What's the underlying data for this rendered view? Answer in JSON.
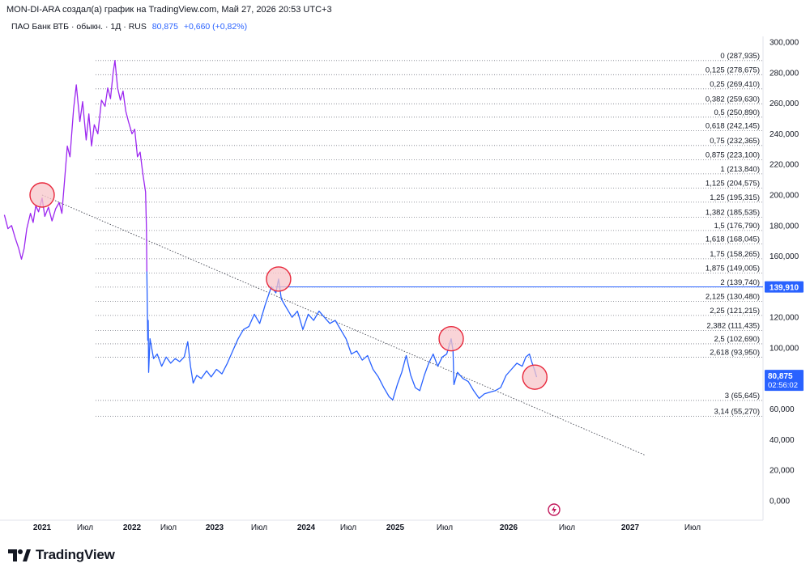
{
  "header": {
    "text": "MON-DI-ARA создал(а) график на TradingView.com, Май 27, 2026 20:53 UTC+3"
  },
  "legend": {
    "title": "ПАО Банк ВТБ · обыкн. · 1Д · RUS",
    "last": "80,875",
    "change": "+0,660 (+0,82%)"
  },
  "footer": {
    "brand": "TradingView"
  },
  "colors": {
    "purple": "#9c27f0",
    "blue": "#2962ff",
    "axis": "#131722",
    "grid_dotted": "#787b86",
    "circle_fill": "#f7c5c9",
    "circle_stroke": "#e8283c"
  },
  "chart_data": {
    "type": "line",
    "title": "ПАО Банк ВТБ · обыкн. · 1Д · RUS",
    "xlabel": "",
    "ylabel": "",
    "ylim": [
      0,
      300000
    ],
    "x_ticks": [
      "2021",
      "Июл",
      "2022",
      "Июл",
      "2023",
      "Июл",
      "2024",
      "Июл",
      "2025",
      "Июл",
      "2026",
      "Июл",
      "2027",
      "Июл"
    ],
    "y_ticks": [
      "0,000",
      "20,000",
      "40,000",
      "60,000",
      "80,000",
      "100,000",
      "120,000",
      "140,000",
      "160,000",
      "180,000",
      "200,000",
      "220,000",
      "240,000",
      "260,000",
      "280,000",
      "300,000"
    ],
    "y_tick_values": [
      0,
      20000,
      40000,
      60000,
      80000,
      100000,
      120000,
      140000,
      160000,
      180000,
      200000,
      220000,
      240000,
      260000,
      280000,
      300000
    ],
    "last_price": {
      "value": "80,875",
      "countdown": "02:56:02"
    },
    "horizontal_line": {
      "label": "139,910",
      "value": 139910
    },
    "fibonacci": [
      {
        "label": "0 (287,935)",
        "value": 287935
      },
      {
        "label": "0,125 (278,675)",
        "value": 278675
      },
      {
        "label": "0,25 (269,410)",
        "value": 269410
      },
      {
        "label": "0,382 (259,630)",
        "value": 259630
      },
      {
        "label": "0,5 (250,890)",
        "value": 250890
      },
      {
        "label": "0,618 (242,145)",
        "value": 242145
      },
      {
        "label": "0,75 (232,365)",
        "value": 232365
      },
      {
        "label": "0,875 (223,100)",
        "value": 223100
      },
      {
        "label": "1 (213,840)",
        "value": 213840
      },
      {
        "label": "1,125 (204,575)",
        "value": 204575
      },
      {
        "label": "1,25 (195,315)",
        "value": 195315
      },
      {
        "label": "1,382 (185,535)",
        "value": 185535
      },
      {
        "label": "1,5 (176,790)",
        "value": 176790
      },
      {
        "label": "1,618 (168,045)",
        "value": 168045
      },
      {
        "label": "1,75 (158,265)",
        "value": 158265
      },
      {
        "label": "1,875 (149,005)",
        "value": 149005
      },
      {
        "label": "2 (139,740)",
        "value": 139740
      },
      {
        "label": "2,125 (130,480)",
        "value": 130480
      },
      {
        "label": "2,25 (121,215)",
        "value": 121215
      },
      {
        "label": "2,382 (111,435)",
        "value": 111435
      },
      {
        "label": "2,5 (102,690)",
        "value": 102690
      },
      {
        "label": "2,618 (93,950)",
        "value": 93950
      },
      {
        "label": "3 (65,645)",
        "value": 65645
      },
      {
        "label": "3,14 (55,270)",
        "value": 55270
      }
    ],
    "trendline": {
      "from": {
        "x": 2021.0,
        "y": 200000
      },
      "to": {
        "x": 2027.7,
        "y": 30000
      }
    },
    "marked_circles": [
      {
        "x": 2021.0,
        "y": 200000
      },
      {
        "x": 2023.63,
        "y": 145000
      },
      {
        "x": 2025.55,
        "y": 106000
      },
      {
        "x": 2026.48,
        "y": 80875
      }
    ],
    "series": [
      {
        "color": "purple",
        "points": [
          [
            2020.58,
            187000
          ],
          [
            2020.62,
            178000
          ],
          [
            2020.66,
            180000
          ],
          [
            2020.7,
            172000
          ],
          [
            2020.74,
            165000
          ],
          [
            2020.77,
            158000
          ],
          [
            2020.8,
            165000
          ],
          [
            2020.83,
            178000
          ],
          [
            2020.87,
            188000
          ],
          [
            2020.9,
            182000
          ],
          [
            2020.93,
            193000
          ],
          [
            2020.96,
            189000
          ],
          [
            2021.0,
            198000
          ],
          [
            2021.03,
            186000
          ],
          [
            2021.07,
            192000
          ],
          [
            2021.11,
            183000
          ],
          [
            2021.15,
            191000
          ],
          [
            2021.19,
            195000
          ],
          [
            2021.22,
            188000
          ],
          [
            2021.25,
            210000
          ],
          [
            2021.28,
            232000
          ],
          [
            2021.31,
            225000
          ],
          [
            2021.35,
            256000
          ],
          [
            2021.38,
            272000
          ],
          [
            2021.42,
            248000
          ],
          [
            2021.45,
            261000
          ],
          [
            2021.49,
            236000
          ],
          [
            2021.52,
            253000
          ],
          [
            2021.55,
            232000
          ],
          [
            2021.58,
            246000
          ],
          [
            2021.62,
            240000
          ],
          [
            2021.66,
            262000
          ],
          [
            2021.7,
            258000
          ],
          [
            2021.73,
            270000
          ],
          [
            2021.76,
            263000
          ],
          [
            2021.79,
            280000
          ],
          [
            2021.81,
            288000
          ],
          [
            2021.84,
            270000
          ],
          [
            2021.87,
            262000
          ],
          [
            2021.9,
            268000
          ],
          [
            2021.93,
            255000
          ],
          [
            2021.96,
            248000
          ],
          [
            2022.0,
            240000
          ],
          [
            2022.03,
            243000
          ],
          [
            2022.06,
            225000
          ],
          [
            2022.09,
            228000
          ],
          [
            2022.12,
            214000
          ],
          [
            2022.15,
            202000
          ],
          [
            2022.16,
            178000
          ],
          [
            2022.165,
            150000
          ]
        ]
      },
      {
        "color": "blue",
        "points": [
          [
            2022.165,
            150000
          ],
          [
            2022.175,
            105000
          ],
          [
            2022.18,
            118000
          ],
          [
            2022.185,
            84000
          ],
          [
            2022.2,
            106000
          ],
          [
            2022.24,
            93000
          ],
          [
            2022.28,
            96000
          ],
          [
            2022.33,
            88000
          ],
          [
            2022.38,
            94000
          ],
          [
            2022.43,
            90000
          ],
          [
            2022.48,
            93000
          ],
          [
            2022.53,
            91000
          ],
          [
            2022.58,
            94000
          ],
          [
            2022.62,
            104000
          ],
          [
            2022.65,
            88000
          ],
          [
            2022.68,
            77000
          ],
          [
            2022.72,
            82000
          ],
          [
            2022.77,
            80000
          ],
          [
            2022.83,
            85000
          ],
          [
            2022.88,
            81000
          ],
          [
            2022.94,
            86000
          ],
          [
            2023.0,
            83000
          ],
          [
            2023.06,
            90000
          ],
          [
            2023.12,
            98000
          ],
          [
            2023.18,
            106000
          ],
          [
            2023.24,
            112000
          ],
          [
            2023.3,
            114000
          ],
          [
            2023.36,
            122000
          ],
          [
            2023.42,
            116000
          ],
          [
            2023.48,
            128000
          ],
          [
            2023.55,
            140000
          ],
          [
            2023.6,
            136000
          ],
          [
            2023.63,
            145000
          ],
          [
            2023.66,
            132000
          ],
          [
            2023.72,
            126000
          ],
          [
            2023.78,
            120000
          ],
          [
            2023.84,
            124000
          ],
          [
            2023.9,
            112000
          ],
          [
            2023.96,
            122000
          ],
          [
            2024.02,
            118000
          ],
          [
            2024.08,
            124000
          ],
          [
            2024.14,
            120000
          ],
          [
            2024.2,
            116000
          ],
          [
            2024.26,
            118000
          ],
          [
            2024.32,
            112000
          ],
          [
            2024.38,
            106000
          ],
          [
            2024.44,
            96000
          ],
          [
            2024.5,
            98000
          ],
          [
            2024.56,
            92000
          ],
          [
            2024.62,
            95000
          ],
          [
            2024.68,
            86000
          ],
          [
            2024.74,
            81000
          ],
          [
            2024.8,
            74000
          ],
          [
            2024.86,
            68000
          ],
          [
            2024.9,
            66000
          ],
          [
            2024.95,
            76000
          ],
          [
            2025.0,
            84000
          ],
          [
            2025.05,
            95000
          ],
          [
            2025.1,
            82000
          ],
          [
            2025.15,
            74000
          ],
          [
            2025.2,
            72000
          ],
          [
            2025.25,
            82000
          ],
          [
            2025.3,
            90000
          ],
          [
            2025.35,
            96000
          ],
          [
            2025.4,
            88000
          ],
          [
            2025.45,
            94000
          ],
          [
            2025.5,
            96000
          ],
          [
            2025.55,
            106000
          ],
          [
            2025.57,
            98000
          ],
          [
            2025.58,
            76000
          ],
          [
            2025.62,
            84000
          ],
          [
            2025.68,
            80000
          ],
          [
            2025.74,
            78000
          ],
          [
            2025.8,
            72000
          ],
          [
            2025.86,
            67000
          ],
          [
            2025.92,
            70000
          ],
          [
            2025.98,
            71000
          ],
          [
            2026.04,
            72000
          ],
          [
            2026.1,
            74000
          ],
          [
            2026.16,
            82000
          ],
          [
            2026.22,
            86000
          ],
          [
            2026.28,
            90000
          ],
          [
            2026.34,
            88000
          ],
          [
            2026.38,
            94000
          ],
          [
            2026.42,
            96000
          ],
          [
            2026.45,
            90000
          ],
          [
            2026.48,
            85000
          ],
          [
            2026.5,
            80875
          ]
        ]
      }
    ]
  }
}
